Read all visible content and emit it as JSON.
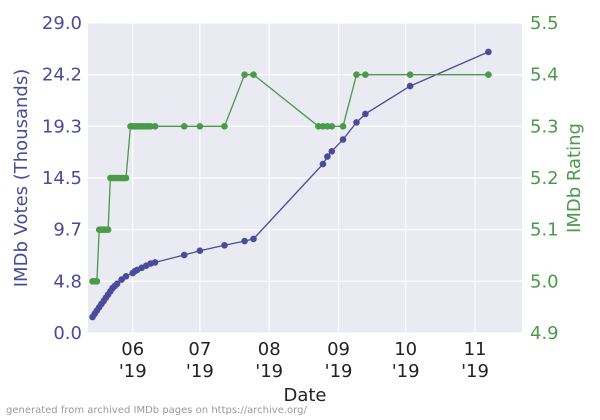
{
  "chart_data": {
    "type": "line",
    "xlabel": "Date",
    "ylabel_left": "IMDb Votes (Thousands)",
    "ylabel_right": "IMDb Rating",
    "x_range": [
      "2019-05-12",
      "2019-11-22"
    ],
    "x_ticks": [
      {
        "date": "2019-06-01",
        "label": "06\n'19"
      },
      {
        "date": "2019-07-01",
        "label": "07\n'19"
      },
      {
        "date": "2019-08-01",
        "label": "08\n'19"
      },
      {
        "date": "2019-09-01",
        "label": "09\n'19"
      },
      {
        "date": "2019-10-01",
        "label": "10\n'19"
      },
      {
        "date": "2019-11-01",
        "label": "11\n'19"
      }
    ],
    "left_axis": {
      "ylim": [
        0.0,
        29.0
      ],
      "ticks": [
        "0.0",
        "4.8",
        "9.7",
        "14.5",
        "19.3",
        "24.2",
        "29.0"
      ]
    },
    "right_axis": {
      "ylim": [
        4.9,
        5.5
      ],
      "ticks": [
        "4.9",
        "5.0",
        "5.1",
        "5.2",
        "5.3",
        "5.4",
        "5.5"
      ]
    },
    "grid": true,
    "background": "#eaeaf2",
    "series": [
      {
        "axis": "left",
        "color": "#4b4b9a",
        "points": [
          [
            "2019-05-14",
            1.5
          ],
          [
            "2019-05-15",
            1.8
          ],
          [
            "2019-05-16",
            2.1
          ],
          [
            "2019-05-17",
            2.4
          ],
          [
            "2019-05-18",
            2.7
          ],
          [
            "2019-05-19",
            3.0
          ],
          [
            "2019-05-20",
            3.3
          ],
          [
            "2019-05-21",
            3.6
          ],
          [
            "2019-05-22",
            3.9
          ],
          [
            "2019-05-23",
            4.2
          ],
          [
            "2019-05-24",
            4.4
          ],
          [
            "2019-05-25",
            4.6
          ],
          [
            "2019-05-27",
            5.0
          ],
          [
            "2019-05-29",
            5.3
          ],
          [
            "2019-06-01",
            5.6
          ],
          [
            "2019-06-02",
            5.8
          ],
          [
            "2019-06-03",
            5.9
          ],
          [
            "2019-06-05",
            6.1
          ],
          [
            "2019-06-07",
            6.3
          ],
          [
            "2019-06-09",
            6.5
          ],
          [
            "2019-06-11",
            6.6
          ],
          [
            "2019-06-24",
            7.3
          ],
          [
            "2019-07-01",
            7.7
          ],
          [
            "2019-07-12",
            8.2
          ],
          [
            "2019-07-21",
            8.6
          ],
          [
            "2019-07-25",
            8.8
          ],
          [
            "2019-08-25",
            15.8
          ],
          [
            "2019-08-27",
            16.5
          ],
          [
            "2019-08-29",
            17.0
          ],
          [
            "2019-09-03",
            18.1
          ],
          [
            "2019-09-09",
            19.7
          ],
          [
            "2019-09-13",
            20.5
          ],
          [
            "2019-10-03",
            23.1
          ],
          [
            "2019-11-07",
            26.3
          ]
        ]
      },
      {
        "axis": "right",
        "color": "#4a9a4a",
        "points": [
          [
            "2019-05-14",
            5.0
          ],
          [
            "2019-05-15",
            5.0
          ],
          [
            "2019-05-16",
            5.0
          ],
          [
            "2019-05-17",
            5.1
          ],
          [
            "2019-05-18",
            5.1
          ],
          [
            "2019-05-19",
            5.1
          ],
          [
            "2019-05-20",
            5.1
          ],
          [
            "2019-05-21",
            5.1
          ],
          [
            "2019-05-22",
            5.2
          ],
          [
            "2019-05-23",
            5.2
          ],
          [
            "2019-05-24",
            5.2
          ],
          [
            "2019-05-25",
            5.2
          ],
          [
            "2019-05-26",
            5.2
          ],
          [
            "2019-05-27",
            5.2
          ],
          [
            "2019-05-28",
            5.2
          ],
          [
            "2019-05-29",
            5.2
          ],
          [
            "2019-05-31",
            5.3
          ],
          [
            "2019-06-01",
            5.3
          ],
          [
            "2019-06-02",
            5.3
          ],
          [
            "2019-06-03",
            5.3
          ],
          [
            "2019-06-04",
            5.3
          ],
          [
            "2019-06-05",
            5.3
          ],
          [
            "2019-06-06",
            5.3
          ],
          [
            "2019-06-07",
            5.3
          ],
          [
            "2019-06-08",
            5.3
          ],
          [
            "2019-06-09",
            5.3
          ],
          [
            "2019-06-11",
            5.3
          ],
          [
            "2019-06-24",
            5.3
          ],
          [
            "2019-07-01",
            5.3
          ],
          [
            "2019-07-12",
            5.3
          ],
          [
            "2019-07-21",
            5.4
          ],
          [
            "2019-07-25",
            5.4
          ],
          [
            "2019-08-23",
            5.3
          ],
          [
            "2019-08-25",
            5.3
          ],
          [
            "2019-08-27",
            5.3
          ],
          [
            "2019-08-29",
            5.3
          ],
          [
            "2019-09-03",
            5.3
          ],
          [
            "2019-09-09",
            5.4
          ],
          [
            "2019-09-13",
            5.4
          ],
          [
            "2019-10-03",
            5.4
          ],
          [
            "2019-11-07",
            5.4
          ]
        ]
      }
    ]
  },
  "footer_text": "generated from archived IMDb pages on https://archive.org/"
}
